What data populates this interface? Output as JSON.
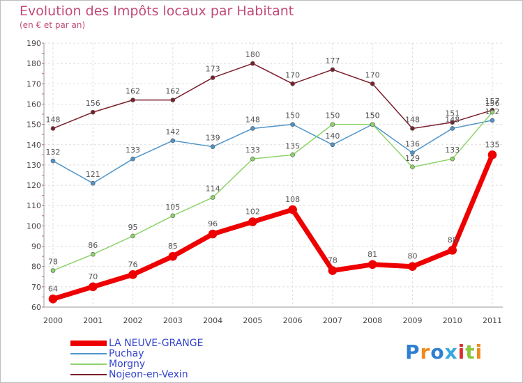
{
  "chart_data": {
    "type": "line",
    "title": "Evolution des Impôts locaux par Habitant",
    "subtitle": "(en € et par an)",
    "categories": [
      "2000",
      "2001",
      "2002",
      "2003",
      "2004",
      "2005",
      "2006",
      "2007",
      "2008",
      "2009",
      "2010",
      "2011"
    ],
    "ylim": [
      60,
      190
    ],
    "yticks": [
      60,
      70,
      80,
      90,
      100,
      110,
      120,
      130,
      140,
      150,
      160,
      170,
      180,
      190
    ],
    "grid": true,
    "legend_position": "bottom-left",
    "series": [
      {
        "name": "Nojeon-en-Vexin",
        "color": "#7a1f2b",
        "values": [
          148,
          156,
          162,
          162,
          173,
          180,
          170,
          177,
          170,
          148,
          151,
          157
        ]
      },
      {
        "name": "Puchay",
        "color": "#4f94c9",
        "values": [
          132,
          121,
          133,
          142,
          139,
          148,
          150,
          140,
          150,
          136,
          148,
          152
        ]
      },
      {
        "name": "Morgny",
        "color": "#8ed36a",
        "values": [
          78,
          86,
          95,
          105,
          114,
          133,
          135,
          150,
          150,
          129,
          133,
          156
        ]
      },
      {
        "name": "LA NEUVE-GRANGE",
        "color": "#ee0000",
        "values": [
          64,
          70,
          76,
          85,
          96,
          102,
          108,
          78,
          81,
          80,
          88,
          135
        ]
      }
    ]
  },
  "legend": [
    {
      "label": "LA NEUVE-GRANGE",
      "color": "#ee0000"
    },
    {
      "label": "Puchay",
      "color": "#4f94c9"
    },
    {
      "label": "Morgny",
      "color": "#8ed36a"
    },
    {
      "label": "Nojeon-en-Vexin",
      "color": "#7a1f2b"
    }
  ],
  "legend_text_color": "#3344cc",
  "logo": {
    "text": "Proxiti",
    "colors": [
      "#2f7fd0",
      "#f08a1c",
      "#2f7fd0",
      "#3aa8e0",
      "#d83030",
      "#8dc63f",
      "#f08a1c"
    ]
  }
}
